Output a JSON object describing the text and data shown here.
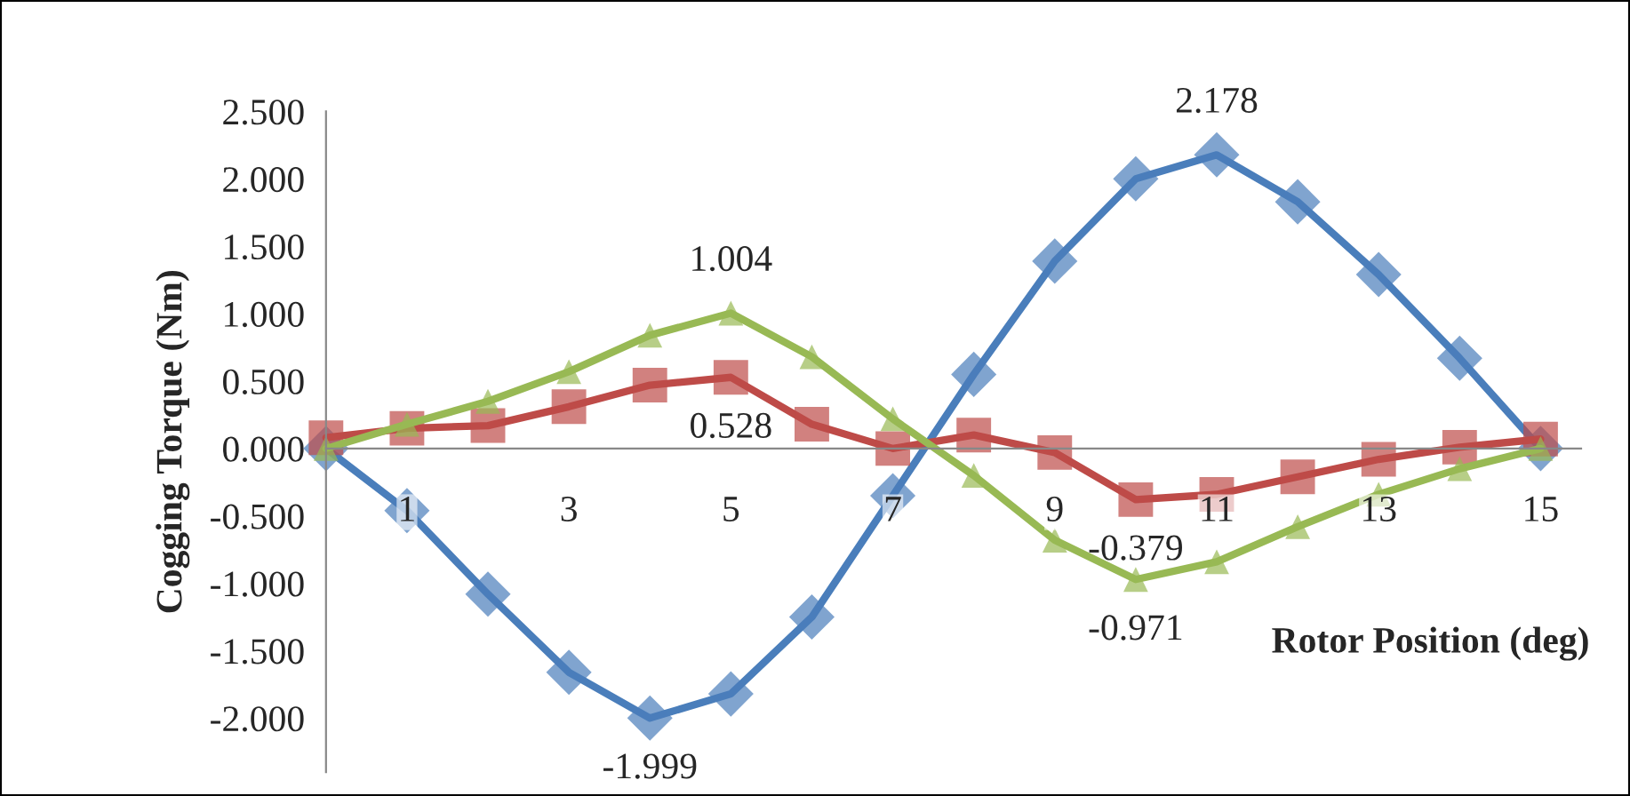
{
  "chart_data": {
    "type": "line",
    "xlabel": "Rotor Position (deg)",
    "ylabel": "Cogging Torque (Nm)",
    "x": [
      0,
      1,
      2,
      3,
      4,
      5,
      6,
      7,
      8,
      9,
      10,
      11,
      12,
      13,
      14,
      15
    ],
    "series": [
      {
        "color": "#4a7ebb",
        "marker": "diamond",
        "values": [
          0.0,
          -0.46,
          -1.08,
          -1.66,
          -1.999,
          -1.82,
          -1.25,
          -0.35,
          0.55,
          1.39,
          2.0,
          2.178,
          1.83,
          1.29,
          0.67,
          0.0
        ]
      },
      {
        "color": "#be4b48",
        "marker": "square",
        "values": [
          0.08,
          0.15,
          0.17,
          0.31,
          0.47,
          0.528,
          0.18,
          0.0,
          0.1,
          -0.03,
          -0.379,
          -0.34,
          -0.21,
          -0.08,
          0.01,
          0.07
        ]
      },
      {
        "color": "#98b954",
        "marker": "triangle",
        "values": [
          0.0,
          0.18,
          0.35,
          0.57,
          0.84,
          1.004,
          0.68,
          0.22,
          -0.2,
          -0.68,
          -0.971,
          -0.84,
          -0.58,
          -0.34,
          -0.15,
          0.0
        ]
      }
    ],
    "annotations": [
      {
        "text": "1.004",
        "x": 5,
        "y": 1.004
      },
      {
        "text": "0.528",
        "x": 5,
        "y": 0.528
      },
      {
        "text": "2.178",
        "x": 11,
        "y": 2.178
      },
      {
        "text": "-0.379",
        "x": 10,
        "y": -0.379
      },
      {
        "text": "-0.971",
        "x": 10,
        "y": -0.971
      },
      {
        "text": "-1.999",
        "x": 4,
        "y": -1.999
      }
    ],
    "xlim": [
      0,
      15.5
    ],
    "xticks": [
      1,
      3,
      5,
      7,
      9,
      11,
      13,
      15
    ],
    "ylim": [
      -2.4,
      2.5
    ],
    "yticks": [
      {
        "value": -2.0,
        "label": "-2.000"
      },
      {
        "value": -1.5,
        "label": "-1.500"
      },
      {
        "value": -1.0,
        "label": "-1.000"
      },
      {
        "value": -0.5,
        "label": "-0.500"
      },
      {
        "value": 0.0,
        "label": "0.000"
      },
      {
        "value": 0.5,
        "label": "0.500"
      },
      {
        "value": 1.0,
        "label": "1.000"
      },
      {
        "value": 1.5,
        "label": "1.500"
      },
      {
        "value": 2.0,
        "label": "2.000"
      },
      {
        "value": 2.5,
        "label": "2.500"
      }
    ],
    "grid": false,
    "legend": false,
    "line_style": "solid"
  }
}
